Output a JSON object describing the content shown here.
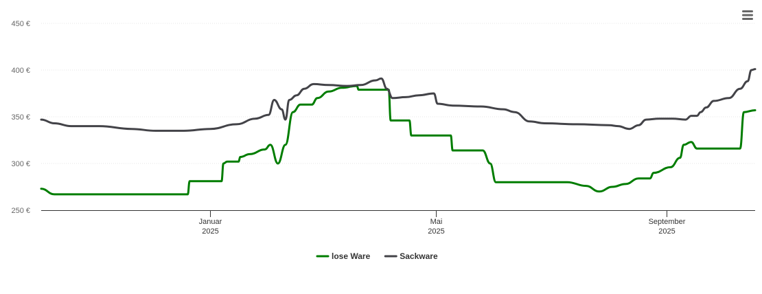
{
  "chart_data": {
    "type": "line",
    "title": "",
    "xlabel": "",
    "ylabel": "",
    "ylim": [
      250,
      450
    ],
    "y_ticks": [
      {
        "value": 250,
        "label": "250 €"
      },
      {
        "value": 300,
        "label": "300 €"
      },
      {
        "value": 350,
        "label": "350 €"
      },
      {
        "value": 400,
        "label": "400 €"
      },
      {
        "value": 450,
        "label": "450 €"
      }
    ],
    "x_range": [
      "2024-10-03",
      "2025-10-18"
    ],
    "x_ticks": [
      {
        "date": "2025-01-01",
        "line1": "Januar",
        "line2": "2025"
      },
      {
        "date": "2025-05-01",
        "line1": "Mai",
        "line2": "2025"
      },
      {
        "date": "2025-09-01",
        "line1": "September",
        "line2": "2025"
      }
    ],
    "grid": true,
    "legend": "bottom-center",
    "series": [
      {
        "name": "lose Ware",
        "color": "#007d00",
        "points": [
          [
            "2024-10-03",
            273
          ],
          [
            "2024-10-10",
            267
          ],
          [
            "2024-10-25",
            267
          ],
          [
            "2024-11-15",
            267
          ],
          [
            "2024-12-10",
            267
          ],
          [
            "2024-12-20",
            267
          ],
          [
            "2024-12-21",
            281
          ],
          [
            "2025-01-07",
            281
          ],
          [
            "2025-01-08",
            300
          ],
          [
            "2025-01-10",
            302
          ],
          [
            "2025-01-16",
            302
          ],
          [
            "2025-01-17",
            307
          ],
          [
            "2025-01-22",
            310
          ],
          [
            "2025-01-30",
            315
          ],
          [
            "2025-02-02",
            320
          ],
          [
            "2025-02-06",
            300
          ],
          [
            "2025-02-10",
            320
          ],
          [
            "2025-02-14",
            355
          ],
          [
            "2025-02-18",
            363
          ],
          [
            "2025-02-24",
            363
          ],
          [
            "2025-02-27",
            370
          ],
          [
            "2025-03-05",
            377
          ],
          [
            "2025-03-12",
            381
          ],
          [
            "2025-03-20",
            383
          ],
          [
            "2025-03-21",
            379
          ],
          [
            "2025-04-06",
            379
          ],
          [
            "2025-04-07",
            346
          ],
          [
            "2025-04-17",
            346
          ],
          [
            "2025-04-18",
            330
          ],
          [
            "2025-05-09",
            330
          ],
          [
            "2025-05-10",
            314
          ],
          [
            "2025-05-26",
            314
          ],
          [
            "2025-05-30",
            300
          ],
          [
            "2025-06-02",
            280
          ],
          [
            "2025-06-15",
            280
          ],
          [
            "2025-07-10",
            280
          ],
          [
            "2025-07-20",
            276
          ],
          [
            "2025-07-27",
            270
          ],
          [
            "2025-08-03",
            275
          ],
          [
            "2025-08-10",
            278
          ],
          [
            "2025-08-17",
            284
          ],
          [
            "2025-08-23",
            284
          ],
          [
            "2025-08-25",
            290
          ],
          [
            "2025-09-03",
            296
          ],
          [
            "2025-09-08",
            306
          ],
          [
            "2025-09-10",
            320
          ],
          [
            "2025-09-14",
            323
          ],
          [
            "2025-09-17",
            316
          ],
          [
            "2025-10-01",
            316
          ],
          [
            "2025-10-10",
            316
          ],
          [
            "2025-10-12",
            355
          ],
          [
            "2025-10-18",
            357
          ]
        ]
      },
      {
        "name": "Sackware",
        "color": "#434348",
        "points": [
          [
            "2024-10-03",
            347
          ],
          [
            "2024-10-10",
            343
          ],
          [
            "2024-10-19",
            340
          ],
          [
            "2024-11-03",
            340
          ],
          [
            "2024-11-20",
            337
          ],
          [
            "2024-12-03",
            335
          ],
          [
            "2024-12-18",
            335
          ],
          [
            "2025-01-01",
            337
          ],
          [
            "2025-01-15",
            342
          ],
          [
            "2025-01-25",
            348
          ],
          [
            "2025-02-01",
            352
          ],
          [
            "2025-02-04",
            368
          ],
          [
            "2025-02-08",
            358
          ],
          [
            "2025-02-10",
            347
          ],
          [
            "2025-02-12",
            368
          ],
          [
            "2025-02-16",
            373
          ],
          [
            "2025-02-20",
            380
          ],
          [
            "2025-02-25",
            385
          ],
          [
            "2025-03-05",
            384
          ],
          [
            "2025-03-15",
            383
          ],
          [
            "2025-03-22",
            384
          ],
          [
            "2025-03-30",
            389
          ],
          [
            "2025-04-02",
            391
          ],
          [
            "2025-04-05",
            380
          ],
          [
            "2025-04-08",
            370
          ],
          [
            "2025-04-15",
            371
          ],
          [
            "2025-04-22",
            373
          ],
          [
            "2025-04-30",
            375
          ],
          [
            "2025-05-02",
            364
          ],
          [
            "2025-05-10",
            362
          ],
          [
            "2025-05-25",
            361
          ],
          [
            "2025-06-06",
            358
          ],
          [
            "2025-06-12",
            355
          ],
          [
            "2025-06-20",
            345
          ],
          [
            "2025-06-28",
            343
          ],
          [
            "2025-07-15",
            342
          ],
          [
            "2025-08-01",
            341
          ],
          [
            "2025-08-06",
            340
          ],
          [
            "2025-08-12",
            337
          ],
          [
            "2025-08-17",
            341
          ],
          [
            "2025-08-21",
            347
          ],
          [
            "2025-08-28",
            348
          ],
          [
            "2025-09-04",
            348
          ],
          [
            "2025-09-11",
            347
          ],
          [
            "2025-09-14",
            351
          ],
          [
            "2025-09-17",
            351
          ],
          [
            "2025-09-19",
            355
          ],
          [
            "2025-09-22",
            360
          ],
          [
            "2025-09-26",
            367
          ],
          [
            "2025-10-04",
            370
          ],
          [
            "2025-10-10",
            380
          ],
          [
            "2025-10-14",
            388
          ],
          [
            "2025-10-16",
            400
          ],
          [
            "2025-10-18",
            401
          ]
        ]
      }
    ]
  },
  "ui": {
    "menu_icon": "hamburger-menu-icon"
  }
}
